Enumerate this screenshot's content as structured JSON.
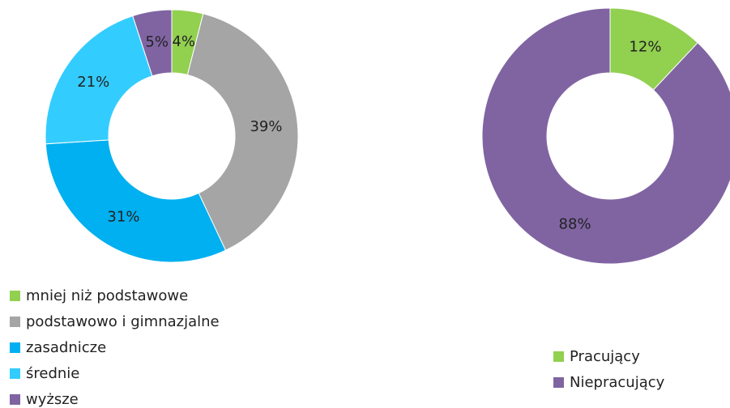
{
  "chart_data": [
    {
      "type": "donut",
      "categories": [
        "mniej niż podstawowe",
        "podstawowo i gimnazjalne",
        "zasadnicze",
        "średnie",
        "wyższe"
      ],
      "values": [
        4,
        39,
        31,
        21,
        5
      ],
      "value_labels": [
        "4%",
        "39%",
        "31%",
        "21%",
        "5%"
      ],
      "colors": [
        "#92d050",
        "#a5a5a5",
        "#00b0f0",
        "#33ccff",
        "#8064a2"
      ]
    },
    {
      "type": "donut",
      "categories": [
        "Pracujący",
        "Niepracujący"
      ],
      "values": [
        12,
        88
      ],
      "value_labels": [
        "12%",
        "88%"
      ],
      "colors": [
        "#92d050",
        "#8064a2"
      ]
    }
  ]
}
